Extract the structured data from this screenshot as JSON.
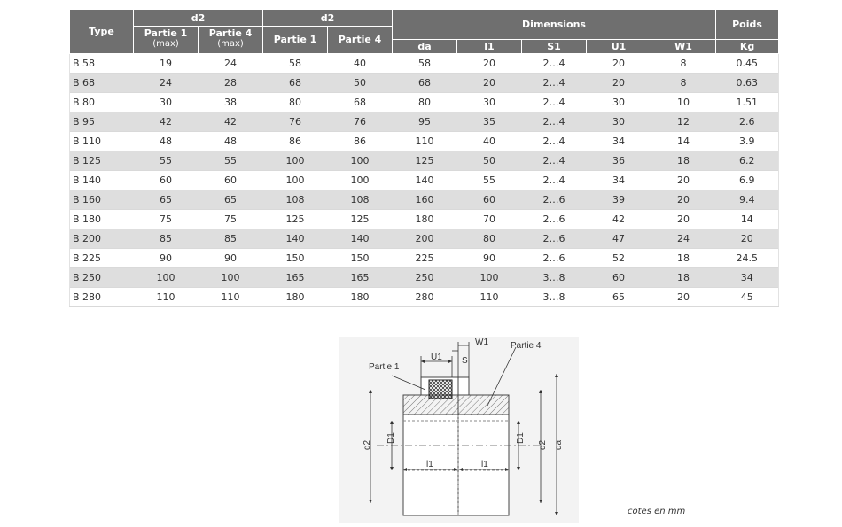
{
  "table": {
    "headers": {
      "type": "Type",
      "d2_a": "d2",
      "d2_b": "d2",
      "dimensions": "Dimensions",
      "poids": "Poids",
      "partie1_a": "Partie 1",
      "partie4_a": "Partie 4",
      "partie1_b": "Partie 1",
      "partie4_b": "Partie 4",
      "max_a": "(max)",
      "max_b": "(max)",
      "da": "da",
      "l1": "l1",
      "s1": "S1",
      "u1": "U1",
      "w1": "W1",
      "kg": "Kg"
    },
    "rows": [
      {
        "type": "B 58",
        "d2p1max": "19",
        "d2p4max": "24",
        "d2p1": "58",
        "d2p4": "40",
        "da": "58",
        "l1": "20",
        "s1": "2…4",
        "u1": "20",
        "w1": "8",
        "kg": "0.45"
      },
      {
        "type": "B 68",
        "d2p1max": "24",
        "d2p4max": "28",
        "d2p1": "68",
        "d2p4": "50",
        "da": "68",
        "l1": "20",
        "s1": "2…4",
        "u1": "20",
        "w1": "8",
        "kg": "0.63"
      },
      {
        "type": "B 80",
        "d2p1max": "30",
        "d2p4max": "38",
        "d2p1": "80",
        "d2p4": "68",
        "da": "80",
        "l1": "30",
        "s1": "2…4",
        "u1": "30",
        "w1": "10",
        "kg": "1.51"
      },
      {
        "type": "B 95",
        "d2p1max": "42",
        "d2p4max": "42",
        "d2p1": "76",
        "d2p4": "76",
        "da": "95",
        "l1": "35",
        "s1": "2…4",
        "u1": "30",
        "w1": "12",
        "kg": "2.6"
      },
      {
        "type": "B 110",
        "d2p1max": "48",
        "d2p4max": "48",
        "d2p1": "86",
        "d2p4": "86",
        "da": "110",
        "l1": "40",
        "s1": "2…4",
        "u1": "34",
        "w1": "14",
        "kg": "3.9"
      },
      {
        "type": "B 125",
        "d2p1max": "55",
        "d2p4max": "55",
        "d2p1": "100",
        "d2p4": "100",
        "da": "125",
        "l1": "50",
        "s1": "2…4",
        "u1": "36",
        "w1": "18",
        "kg": "6.2"
      },
      {
        "type": "B 140",
        "d2p1max": "60",
        "d2p4max": "60",
        "d2p1": "100",
        "d2p4": "100",
        "da": "140",
        "l1": "55",
        "s1": "2…4",
        "u1": "34",
        "w1": "20",
        "kg": "6.9"
      },
      {
        "type": "B 160",
        "d2p1max": "65",
        "d2p4max": "65",
        "d2p1": "108",
        "d2p4": "108",
        "da": "160",
        "l1": "60",
        "s1": "2…6",
        "u1": "39",
        "w1": "20",
        "kg": "9.4"
      },
      {
        "type": "B 180",
        "d2p1max": "75",
        "d2p4max": "75",
        "d2p1": "125",
        "d2p4": "125",
        "da": "180",
        "l1": "70",
        "s1": "2…6",
        "u1": "42",
        "w1": "20",
        "kg": "14"
      },
      {
        "type": "B 200",
        "d2p1max": "85",
        "d2p4max": "85",
        "d2p1": "140",
        "d2p4": "140",
        "da": "200",
        "l1": "80",
        "s1": "2…6",
        "u1": "47",
        "w1": "24",
        "kg": "20"
      },
      {
        "type": "B 225",
        "d2p1max": "90",
        "d2p4max": "90",
        "d2p1": "150",
        "d2p4": "150",
        "da": "225",
        "l1": "90",
        "s1": "2…6",
        "u1": "52",
        "w1": "18",
        "kg": "24.5"
      },
      {
        "type": "B 250",
        "d2p1max": "100",
        "d2p4max": "100",
        "d2p1": "165",
        "d2p4": "165",
        "da": "250",
        "l1": "100",
        "s1": "3…8",
        "u1": "60",
        "w1": "18",
        "kg": "34"
      },
      {
        "type": "B 280",
        "d2p1max": "110",
        "d2p4max": "110",
        "d2p1": "180",
        "d2p4": "180",
        "da": "280",
        "l1": "110",
        "s1": "3…8",
        "u1": "65",
        "w1": "20",
        "kg": "45"
      }
    ]
  },
  "diagram": {
    "labels": {
      "w1": "W1",
      "partie4": "Partie 4",
      "u1": "U1",
      "s": "S",
      "partie1": "Partie 1",
      "d1_left": "D1",
      "d1_right": "D1",
      "d2_left": "d2",
      "d2_right": "d2",
      "da": "da",
      "l1_left": "l1",
      "l1_right": "l1"
    }
  },
  "caption": "cotes en mm",
  "colors": {
    "header_bg": "#6f6f6f",
    "row_alt": "#dedede",
    "line": "#333333"
  }
}
